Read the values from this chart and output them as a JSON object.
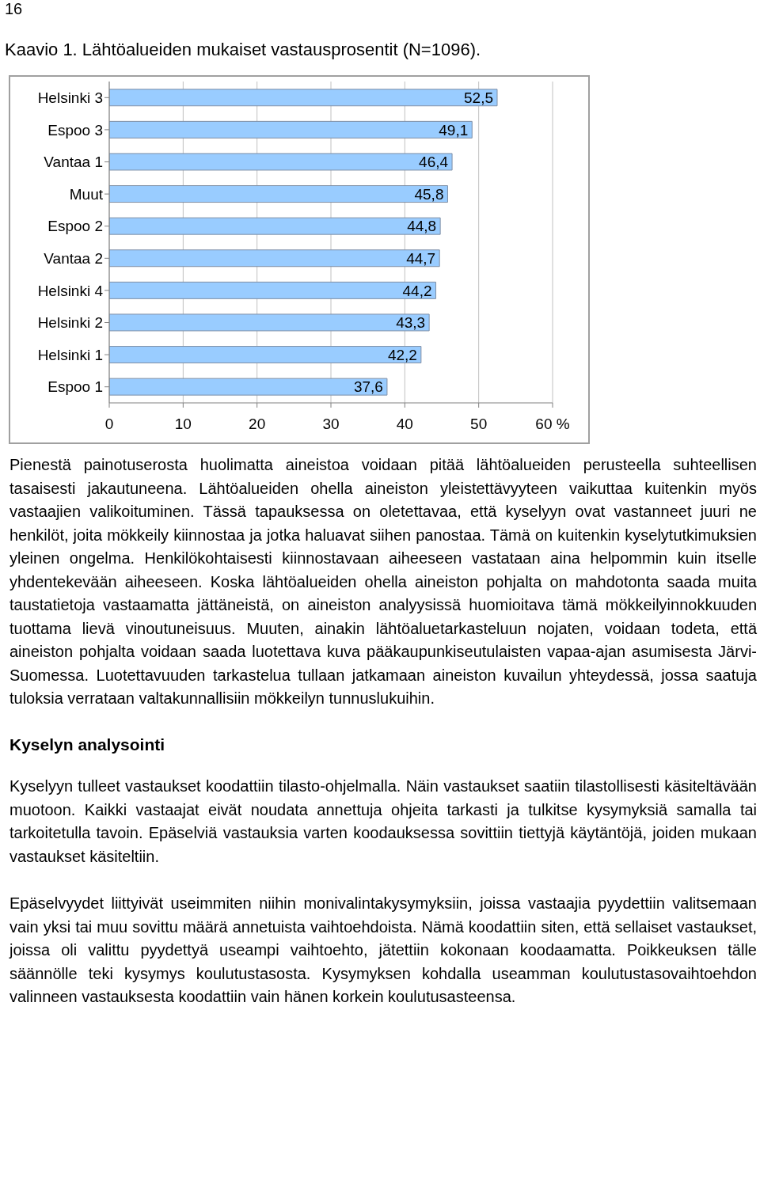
{
  "chart_data": {
    "type": "bar",
    "orientation": "horizontal",
    "title": "Kaavio 1. Lähtöalueiden mukaiset vastausprosentit (N=1096).",
    "categories": [
      "Helsinki 3",
      "Espoo 3",
      "Vantaa 1",
      "Muut",
      "Espoo 2",
      "Vantaa 2",
      "Helsinki 4",
      "Helsinki 2",
      "Helsinki 1",
      "Espoo 1"
    ],
    "values": [
      52.5,
      49.1,
      46.4,
      45.8,
      44.8,
      44.7,
      44.2,
      43.3,
      42.2,
      37.6
    ],
    "color": "#99ccff",
    "value_labels": [
      "52,5",
      "49,1",
      "46,4",
      "45,8",
      "44,8",
      "44,7",
      "44,2",
      "43,3",
      "42,2",
      "37,6"
    ],
    "xlim": [
      0,
      60
    ],
    "xticks": [
      0,
      10,
      20,
      30,
      40,
      50,
      {
        "value": 60,
        "label": "60 %"
      }
    ],
    "grid": "x",
    "annotations": [
      "16",
      "Pienestä painotuserosta huolimatta aineistoa voidaan pitää lähtöalueiden perusteella suhteellisen tasaisesti jakautuneena. Lähtöalueiden ohella aineiston yleistettävyyteen vaikuttaa kuitenkin myös vastaajien valikoituminen. Tässä tapauksessa on oletettavaa, että kyselyyn ovat vastanneet juuri ne henkilöt, joita mökkeily kiinnostaa ja jotka haluavat siihen panostaa. Tämä on kuitenkin kyselytutkimuksien yleinen ongelma. Henkilökohtaisesti kiinnostavaan aiheeseen vastataan aina helpommin kuin itselle yhdentekevään aiheeseen. Koska lähtöalueiden ohella aineiston pohjalta on mahdotonta saada muita taustatietoja vastaamatta jättäneistä, on aineiston analyysissä huomioitava tämä mökkeilyinnokkuuden tuottama lievä vinoutuneisuus. Muuten, ainakin lähtöaluetarkasteluun nojaten, voidaan todeta, että aineiston pohjalta voidaan saada luotettava kuva pääkaupunkiseutulaisten vapaa-ajan asumisesta Järvi-Suomessa. Luotettavuuden tarkastelua tullaan jatkamaan aineiston kuvailun yhteydessä, jossa saatuja tuloksia verrataan valtakunnallisiin mökkeilyn tunnuslukuihin.",
      "Kyselyn analysointi",
      "Kyselyyn tulleet vastaukset koodattiin tilasto-ohjelmalla. Näin vastaukset saatiin tilastollisesti käsiteltävään muotoon. Kaikki vastaajat eivät noudata annettuja ohjeita tarkasti ja tulkitse kysymyksiä samalla tai tarkoitetulla tavoin. Epäselviä vastauksia varten koodauksessa sovittiin tiettyjä käytäntöjä, joiden mukaan vastaukset käsiteltiin.",
      "Epäselvyydet liittyivät useimmiten niihin monivalintakysymyksiin, joissa vastaajia pyydettiin valitsemaan vain yksi tai muu sovittu määrä annetuista vaihtoehdoista. Nämä koodattiin siten, että sellaiset vastaukset, joissa oli valittu pyydettyä useampi vaihtoehto, jätettiin kokonaan koodaamatta. Poikkeuksen tälle säännölle teki kysymys koulutustasosta. Kysymyksen kohdalla useamman koulutustasovaihtoehdon valinneen vastauksesta koodattiin vain hänen korkein koulutusasteensa."
    ]
  }
}
